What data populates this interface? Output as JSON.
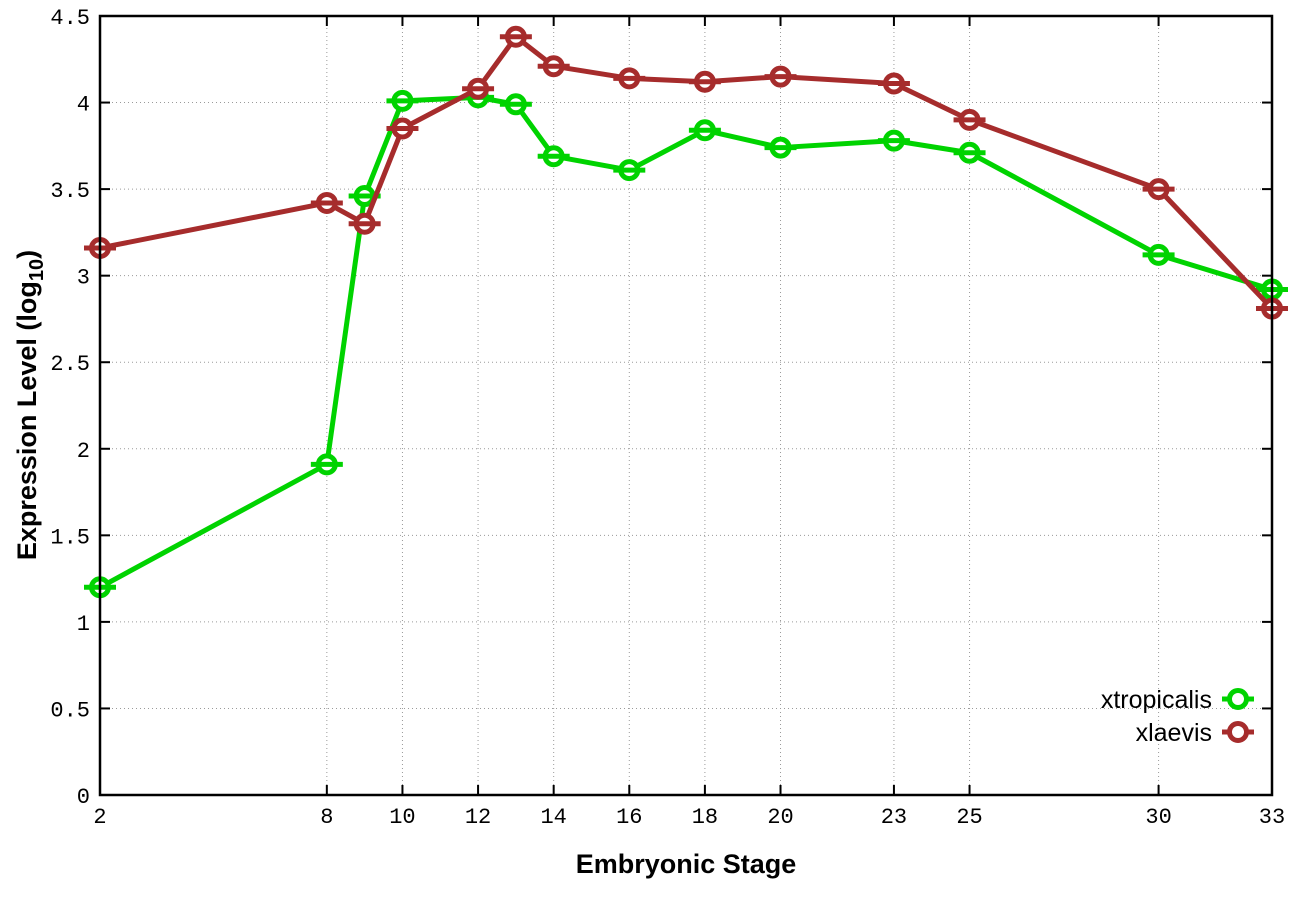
{
  "chart_data": {
    "type": "line",
    "title": "",
    "xlabel": "Embryonic Stage",
    "ylabel": "Expression Level (log10)",
    "ylabel_parts": {
      "main": "Expression Level (log",
      "sub": "10",
      "close": ")"
    },
    "x": [
      2,
      8,
      9,
      10,
      12,
      13,
      14,
      16,
      18,
      20,
      23,
      25,
      30,
      33
    ],
    "series": [
      {
        "name": "xtropicalis",
        "color": "#00d300",
        "values": [
          1.2,
          1.91,
          3.46,
          4.01,
          4.03,
          3.99,
          3.69,
          3.61,
          3.84,
          3.74,
          3.78,
          3.71,
          3.12,
          2.92
        ]
      },
      {
        "name": "xlaevis",
        "color": "#a62c2c",
        "values": [
          3.16,
          3.42,
          3.3,
          3.85,
          4.08,
          4.38,
          4.21,
          4.14,
          4.12,
          4.15,
          4.11,
          3.9,
          3.5,
          2.81
        ]
      }
    ],
    "xlim": [
      2,
      33
    ],
    "ylim": [
      0,
      4.5
    ],
    "xticks": [
      2,
      8,
      10,
      12,
      14,
      16,
      18,
      20,
      23,
      25,
      30,
      33
    ],
    "ytick_values": [
      0,
      0.5,
      1,
      1.5,
      2,
      2.5,
      3,
      3.5,
      4,
      4.5
    ],
    "ytick_labels": [
      "0",
      "0.5",
      "1",
      "1.5",
      "2",
      "2.5",
      "3",
      "3.5",
      "4",
      "4.5"
    ],
    "grid": "dotted",
    "grid_color": "#9a9a9a",
    "axis_color": "#000000",
    "background": "#ffffff",
    "marker_style": "open-circle-with-horizontal-errorbar-cap",
    "legend_position": "inside-bottom-right"
  }
}
